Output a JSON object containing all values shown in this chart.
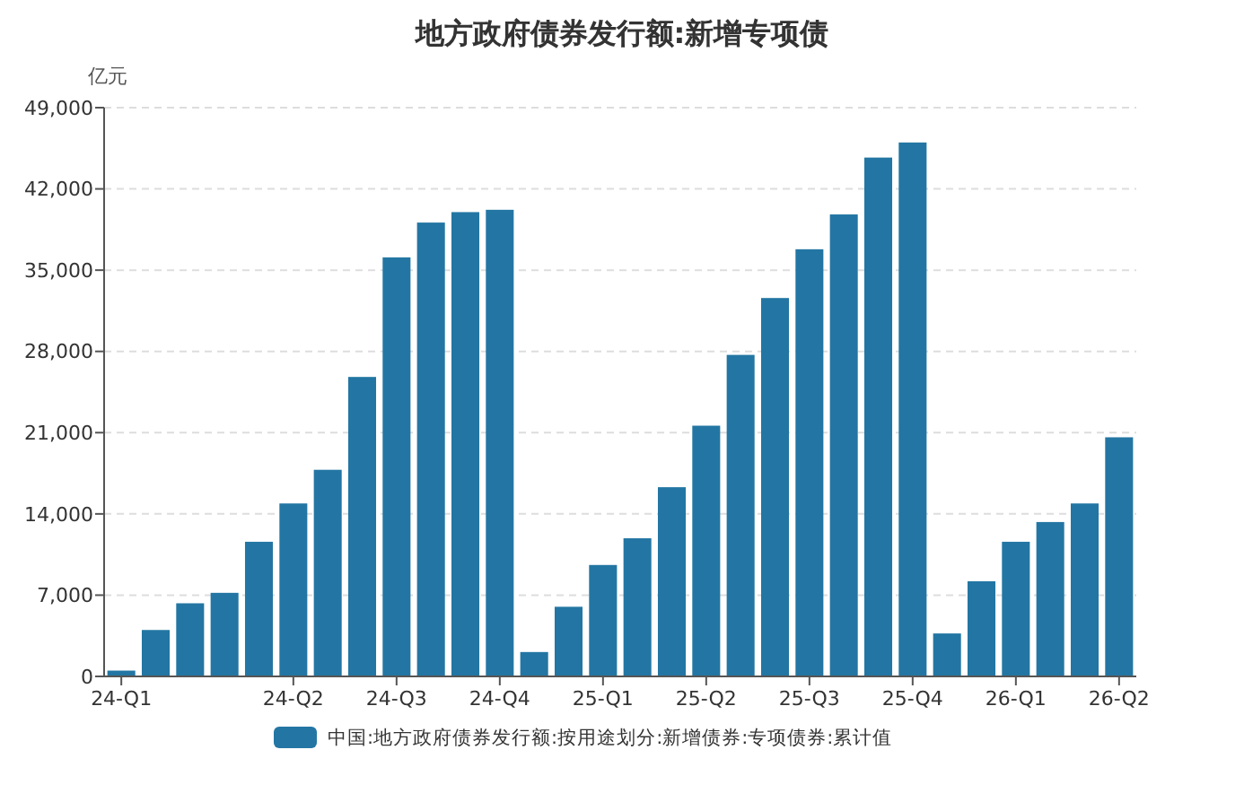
{
  "chart_data": {
    "type": "bar",
    "title": "地方政府债券发行额:新增专项债",
    "ylabel": "亿元",
    "categories": [
      "24-Q1",
      null,
      null,
      null,
      null,
      "24-Q2",
      null,
      null,
      "24-Q3",
      null,
      null,
      "24-Q4",
      null,
      null,
      "25-Q1",
      null,
      null,
      "25-Q2",
      null,
      null,
      "25-Q3",
      null,
      null,
      "25-Q4",
      null,
      null,
      "26-Q1",
      null,
      null,
      "26-Q2"
    ],
    "series": [
      {
        "name": "中国:地方政府债券发行额:按用途划分:新增债券:专项债券:累计值",
        "color": "#2376a3",
        "values": [
          500,
          4000,
          6300,
          7200,
          11600,
          14900,
          17800,
          25800,
          36100,
          39100,
          40000,
          40200,
          2100,
          6000,
          9600,
          11900,
          16300,
          21600,
          27700,
          32600,
          36800,
          39800,
          44700,
          46000,
          3700,
          8200,
          11600,
          13300,
          14900,
          20600
        ]
      }
    ],
    "ylim": [
      0,
      49000
    ],
    "yticks": [
      {
        "value": 0,
        "label": "0"
      },
      {
        "value": 7000,
        "label": "7,000"
      },
      {
        "value": 14000,
        "label": "14,000"
      },
      {
        "value": 21000,
        "label": "21,000"
      },
      {
        "value": 28000,
        "label": "28,000"
      },
      {
        "value": 35000,
        "label": "35,000"
      },
      {
        "value": 42000,
        "label": "42,000"
      },
      {
        "value": 49000,
        "label": "49,000"
      }
    ],
    "grid": "y",
    "legend": "bottom"
  }
}
